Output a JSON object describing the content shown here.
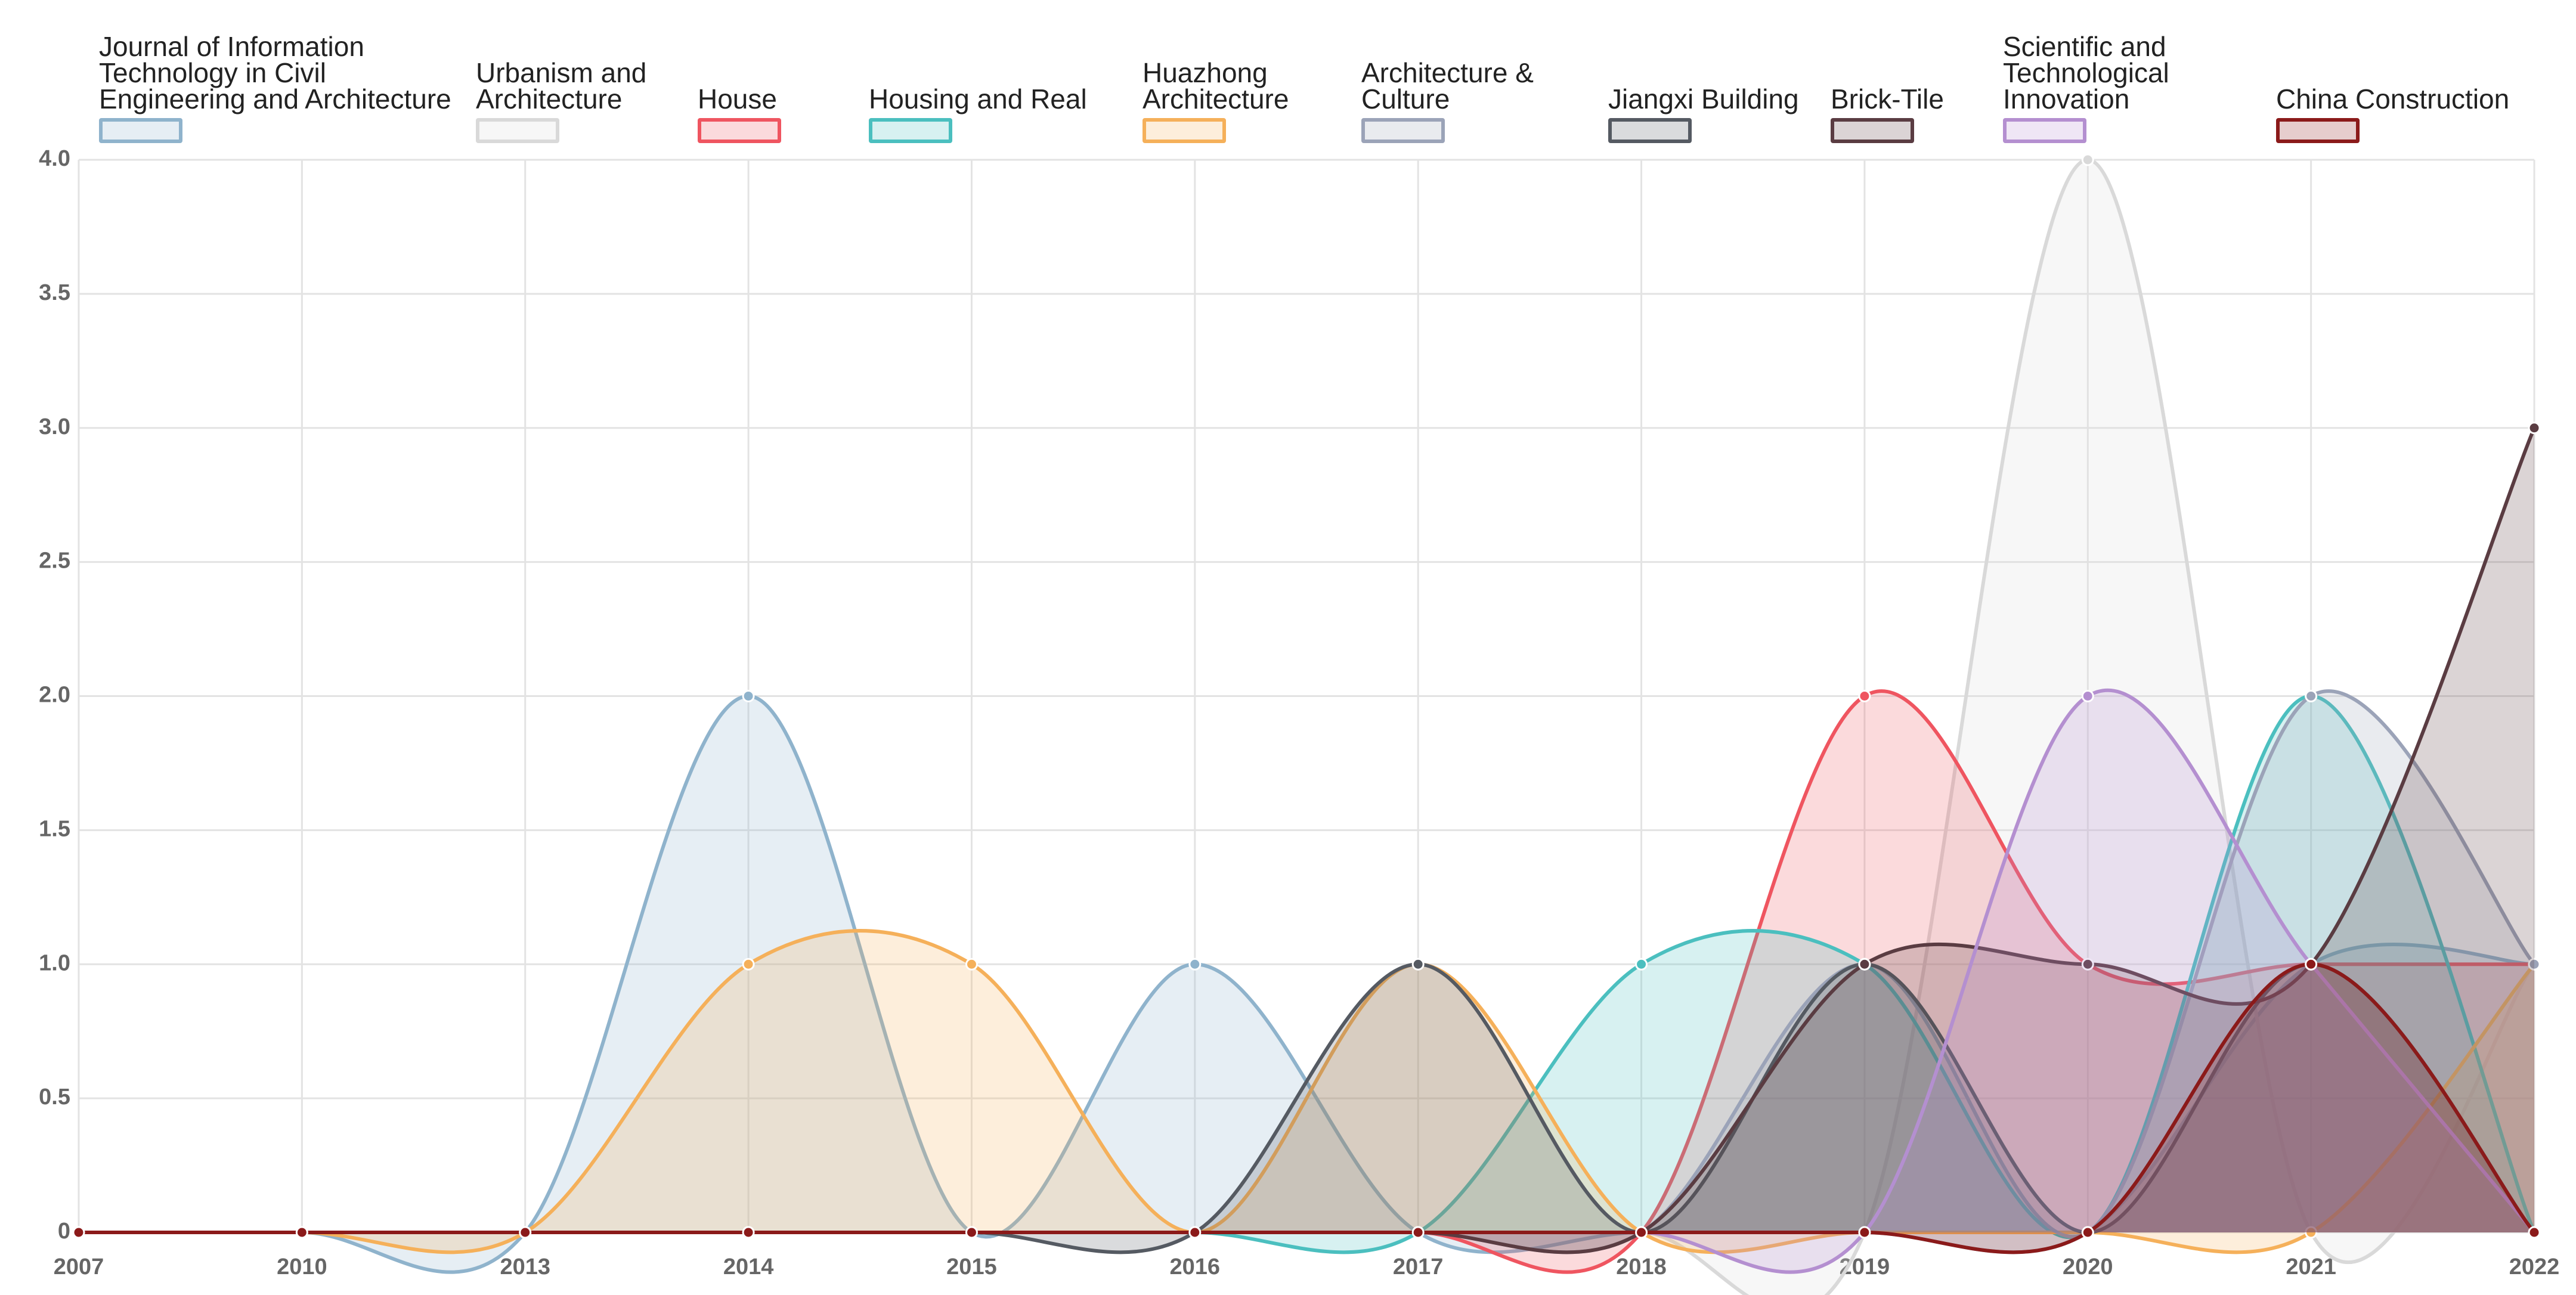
{
  "chart_data": {
    "type": "area",
    "categories": [
      "2007",
      "2010",
      "2013",
      "2014",
      "2015",
      "2016",
      "2017",
      "2018",
      "2019",
      "2020",
      "2021",
      "2022"
    ],
    "ylim": [
      0,
      4
    ],
    "yticks": [
      0,
      0.5,
      {
        "value": 1,
        "label": "1.0"
      },
      1.5,
      {
        "value": 2,
        "label": "2.0"
      },
      2.5,
      {
        "value": 3,
        "label": "3.0"
      },
      3.5,
      {
        "value": 4,
        "label": "4.0"
      }
    ],
    "grid": true,
    "series": [
      {
        "name": "Journal of Information Technology in Civil Engineering and Architecture",
        "color": "#8fb3cc",
        "values": [
          0,
          0,
          0,
          2,
          0,
          1,
          0,
          0,
          0,
          0,
          1,
          1
        ]
      },
      {
        "name": "Urbanism and Architecture",
        "color": "#d9d9d9",
        "values": [
          0,
          0,
          0,
          0,
          0,
          0,
          0,
          0,
          0,
          4,
          0,
          1
        ]
      },
      {
        "name": "House",
        "color": "#ef5560",
        "values": [
          0,
          0,
          0,
          0,
          0,
          0,
          0,
          0,
          2,
          1,
          1,
          1
        ]
      },
      {
        "name": "Housing and Real",
        "color": "#4bbfbf",
        "values": [
          0,
          0,
          0,
          0,
          0,
          0,
          0,
          1,
          1,
          0,
          2,
          0
        ]
      },
      {
        "name": "Huazhong Architecture",
        "color": "#f5b05a",
        "values": [
          0,
          0,
          0,
          1,
          1,
          0,
          1,
          0,
          0,
          0,
          0,
          1
        ]
      },
      {
        "name": "Architecture & Culture",
        "color": "#9ba3b8",
        "values": [
          0,
          0,
          0,
          0,
          0,
          0,
          0,
          0,
          1,
          0,
          2,
          1
        ]
      },
      {
        "name": "Jiangxi Building",
        "color": "#555a62",
        "values": [
          0,
          0,
          0,
          0,
          0,
          0,
          1,
          0,
          1,
          0,
          1,
          0
        ]
      },
      {
        "name": "Brick-Tile",
        "color": "#5a3c42",
        "values": [
          0,
          0,
          0,
          0,
          0,
          0,
          0,
          0,
          1,
          1,
          1,
          3
        ]
      },
      {
        "name": "Scientific and Technological Innovation",
        "color": "#b48fd0",
        "values": [
          0,
          0,
          0,
          0,
          0,
          0,
          0,
          0,
          0,
          2,
          1,
          0
        ]
      },
      {
        "name": "China Construction",
        "color": "#8b1a1a",
        "values": [
          0,
          0,
          0,
          0,
          0,
          0,
          0,
          0,
          0,
          0,
          1,
          0
        ]
      }
    ]
  }
}
